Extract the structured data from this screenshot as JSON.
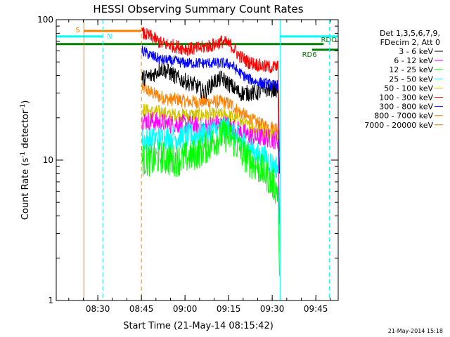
{
  "chart_data": {
    "type": "line",
    "title": "HESSI Observing Summary Count Rates",
    "xlabel": "Start Time (21-May-14 08:15:42)",
    "ylabel": "Count Rate (s",
    "ylabel_sup": "-1",
    "ylabel_tail": " detector",
    "ylabel_sup2": "-1",
    "ylabel_close": ")",
    "x_unit": "minutes since 08:15:42",
    "xlim": [
      0,
      97
    ],
    "ylim": [
      1,
      100
    ],
    "y_scale": "log",
    "x_ticks": [
      {
        "value": 14.3,
        "label": "08:30"
      },
      {
        "value": 29.3,
        "label": "08:45"
      },
      {
        "value": 44.3,
        "label": "09:00"
      },
      {
        "value": 59.3,
        "label": "09:15"
      },
      {
        "value": 74.3,
        "label": "09:30"
      },
      {
        "value": 89.3,
        "label": "09:45"
      }
    ],
    "y_ticks": [
      {
        "value": 1,
        "label": "1"
      },
      {
        "value": 10,
        "label": "10"
      },
      {
        "value": 100,
        "label": "100"
      }
    ],
    "legend": {
      "placement": "right",
      "header": [
        "Det 1,3,5,6,7,9,",
        "FDecim 2, Att 0"
      ]
    },
    "timestamp": "21-May-2014 15:18",
    "series": [
      {
        "name": "3 - 6 keV",
        "color": "#000000",
        "x": [
          29.5,
          33,
          36,
          39,
          42,
          45,
          48,
          51,
          54,
          57,
          60,
          63,
          66,
          69,
          72,
          75,
          76.3
        ],
        "y": [
          38,
          40,
          45,
          42,
          38,
          36,
          34,
          30,
          36,
          38,
          34,
          30,
          30,
          30,
          32,
          32,
          32
        ]
      },
      {
        "name": "6 - 12 keV",
        "color": "#ff00ff",
        "x": [
          29.5,
          33,
          36,
          39,
          42,
          45,
          48,
          51,
          54,
          57,
          60,
          63,
          66,
          69,
          72,
          75,
          76.3
        ],
        "y": [
          19,
          19,
          18.5,
          18,
          18,
          18,
          17.5,
          17,
          18,
          18,
          17.5,
          16,
          15,
          14.5,
          14.5,
          14,
          14
        ]
      },
      {
        "name": "12 - 25 keV",
        "color": "#00ff00",
        "x": [
          29.5,
          33,
          36,
          39,
          42,
          45,
          48,
          51,
          54,
          57,
          60,
          63,
          66,
          69,
          72,
          75,
          76.3
        ],
        "y": [
          10,
          10,
          10.5,
          10,
          10,
          10.5,
          11,
          12,
          13.5,
          15,
          14.5,
          12,
          10,
          9,
          8,
          6.5,
          6
        ]
      },
      {
        "name": "25 - 50 keV",
        "color": "#00ffff",
        "x": [
          29.5,
          33,
          36,
          39,
          42,
          45,
          48,
          51,
          54,
          57,
          60,
          63,
          66,
          69,
          72,
          75,
          76.3
        ],
        "y": [
          14,
          14,
          14.5,
          14.5,
          14.5,
          15,
          15,
          15.5,
          16,
          17,
          16.5,
          14,
          12.5,
          11,
          10.5,
          9,
          9
        ]
      },
      {
        "name": "50 - 100 keV",
        "color": "#d2c300",
        "x": [
          29.5,
          33,
          36,
          39,
          42,
          45,
          48,
          51,
          54,
          57,
          60,
          63,
          66,
          69,
          72,
          75,
          76.3
        ],
        "y": [
          23,
          22,
          22,
          21,
          21,
          21,
          21,
          21,
          21,
          21,
          20.5,
          19,
          17.5,
          16.5,
          16,
          15.5,
          15.5
        ]
      },
      {
        "name": "100 - 300 keV",
        "color": "#ff0000",
        "x": [
          29.5,
          33,
          36,
          39,
          42,
          45,
          48,
          51,
          54,
          57,
          60,
          63,
          66,
          69,
          72,
          75,
          76.3
        ],
        "y": [
          80,
          75,
          68,
          66,
          64,
          62,
          62,
          64,
          66,
          70,
          66,
          55,
          50,
          48,
          46,
          46,
          46
        ]
      },
      {
        "name": "300 - 800 keV",
        "color": "#0000ff",
        "x": [
          29.5,
          33,
          36,
          39,
          42,
          45,
          48,
          51,
          54,
          57,
          60,
          63,
          66,
          69,
          72,
          75,
          76.3
        ],
        "y": [
          60,
          55,
          52,
          51,
          50,
          49,
          49,
          49,
          49,
          49,
          48,
          42,
          38,
          36,
          35,
          34,
          34
        ]
      },
      {
        "name": "800 - 7000 keV",
        "color": "#ff8000",
        "x": [
          29.5,
          33,
          36,
          39,
          42,
          45,
          48,
          51,
          54,
          57,
          60,
          63,
          66,
          69,
          72,
          75,
          76.3
        ],
        "y": [
          33,
          30,
          28,
          27,
          27,
          26,
          26,
          26,
          26,
          26,
          25,
          22,
          20,
          18.5,
          17.5,
          17,
          17
        ]
      },
      {
        "name": "7000 - 20000 keV",
        "color": "#b8860b",
        "x": [],
        "y": []
      }
    ],
    "flags": [
      {
        "label": "S",
        "color": "#ff8000",
        "x0": 9.5,
        "x1": 29.3,
        "y": 83
      },
      {
        "label": "N",
        "color": "#00ffff",
        "x0": 0,
        "x1": 16,
        "y": 76
      },
      {
        "label": "N",
        "color": "#00ffff",
        "x0": 77,
        "x1": 97,
        "y": 76
      },
      {
        "label": "RDO",
        "color": "#007f00",
        "x0": 0,
        "x1": 92,
        "y": 67
      },
      {
        "label": "RD6",
        "color": "#007f00",
        "x0": 88,
        "x1": 97,
        "y": 61
      }
    ],
    "vlines": [
      {
        "x": 9.5,
        "color": "#ff8000",
        "style": "solid"
      },
      {
        "x": 16,
        "color": "#00ffff",
        "style": "dashed"
      },
      {
        "x": 29.3,
        "color": "#ff8000",
        "style": "dashed"
      },
      {
        "x": 77,
        "color": "#00ffff",
        "style": "solid"
      },
      {
        "x": 94,
        "color": "#00ffff",
        "style": "dashed"
      }
    ]
  }
}
